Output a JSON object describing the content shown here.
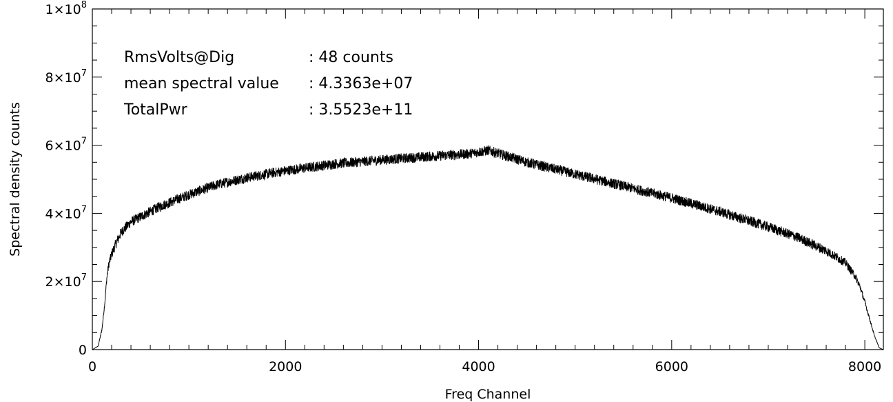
{
  "chart_data": {
    "type": "line",
    "title": "",
    "xlabel": "Freq Channel",
    "ylabel": "Spectral density counts",
    "xlim": [
      0,
      8192
    ],
    "ylim": [
      0,
      100000000
    ],
    "x_ticks": [
      {
        "value": 0,
        "label": "0"
      },
      {
        "value": 2000,
        "label": "2000"
      },
      {
        "value": 4000,
        "label": "4000"
      },
      {
        "value": 6000,
        "label": "6000"
      },
      {
        "value": 8000,
        "label": "8000"
      }
    ],
    "y_ticks": [
      {
        "value": 0,
        "mant": "0",
        "exp": ""
      },
      {
        "value": 20000000,
        "mant": "2×10",
        "exp": "7"
      },
      {
        "value": 40000000,
        "mant": "4×10",
        "exp": "7"
      },
      {
        "value": 60000000,
        "mant": "6×10",
        "exp": "7"
      },
      {
        "value": 80000000,
        "mant": "8×10",
        "exp": "7"
      },
      {
        "value": 100000000,
        "mant": "1×10",
        "exp": "8"
      }
    ],
    "x_minor_step": 200,
    "y_minor_step": 5000000,
    "grid": false,
    "series": [
      {
        "color": "#000000",
        "noise_amplitude": 1500000,
        "x": [
          0,
          60,
          100,
          130,
          150,
          170,
          200,
          250,
          300,
          400,
          500,
          700,
          1000,
          1300,
          1600,
          2000,
          2500,
          3000,
          3500,
          3900,
          4100,
          4500,
          5000,
          5500,
          6000,
          6500,
          7000,
          7300,
          7600,
          7800,
          7900,
          7950,
          8000,
          8050,
          8100,
          8150,
          8192
        ],
        "y": [
          0,
          1000000,
          6000000,
          14000000,
          21000000,
          25000000,
          28000000,
          31500000,
          34500000,
          37500000,
          39000000,
          42000000,
          45500000,
          48500000,
          50500000,
          52500000,
          54500000,
          55700000,
          56700000,
          57500000,
          58500000,
          55000000,
          51500000,
          48000000,
          44500000,
          40500000,
          36000000,
          33000000,
          29000000,
          25500000,
          21500000,
          18500000,
          14000000,
          9000000,
          4000000,
          500000,
          0
        ]
      }
    ],
    "annotations": [
      {
        "label": "RmsVolts@Dig",
        "value": ": 48 counts"
      },
      {
        "label": "mean spectral value",
        "value": ": 4.3363e+07"
      },
      {
        "label": "TotalPwr",
        "value": ": 3.5523e+11"
      }
    ]
  }
}
